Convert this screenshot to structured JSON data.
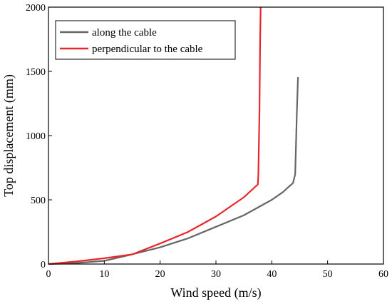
{
  "chart_data": {
    "type": "line",
    "xlabel": "Wind speed (m/s)",
    "ylabel": "Top displacement (mm)",
    "xlim": [
      0,
      60
    ],
    "ylim": [
      0,
      2000
    ],
    "xticks": [
      0,
      10,
      20,
      30,
      40,
      50,
      60
    ],
    "yticks": [
      0,
      500,
      1000,
      1500,
      2000
    ],
    "grid": false,
    "legend_position": "top-left",
    "series": [
      {
        "name": "along the cable",
        "color": "#666666",
        "points": [
          [
            0,
            0
          ],
          [
            5,
            8
          ],
          [
            10,
            25
          ],
          [
            14,
            65
          ],
          [
            20,
            130
          ],
          [
            25,
            200
          ],
          [
            30,
            290
          ],
          [
            35,
            380
          ],
          [
            40,
            500
          ],
          [
            42,
            560
          ],
          [
            43,
            600
          ],
          [
            43.8,
            630
          ],
          [
            44.2,
            700
          ],
          [
            44.5,
            1200
          ],
          [
            44.7,
            1455
          ]
        ]
      },
      {
        "name": "perpendicular to the cable",
        "color": "#e8262b",
        "points": [
          [
            0,
            0
          ],
          [
            5,
            20
          ],
          [
            10,
            45
          ],
          [
            15,
            75
          ],
          [
            20,
            160
          ],
          [
            25,
            250
          ],
          [
            30,
            370
          ],
          [
            35,
            520
          ],
          [
            37,
            600
          ],
          [
            37.5,
            620
          ],
          [
            37.6,
            700
          ],
          [
            37.8,
            1200
          ],
          [
            37.9,
            1700
          ],
          [
            38,
            2000
          ]
        ]
      }
    ]
  }
}
